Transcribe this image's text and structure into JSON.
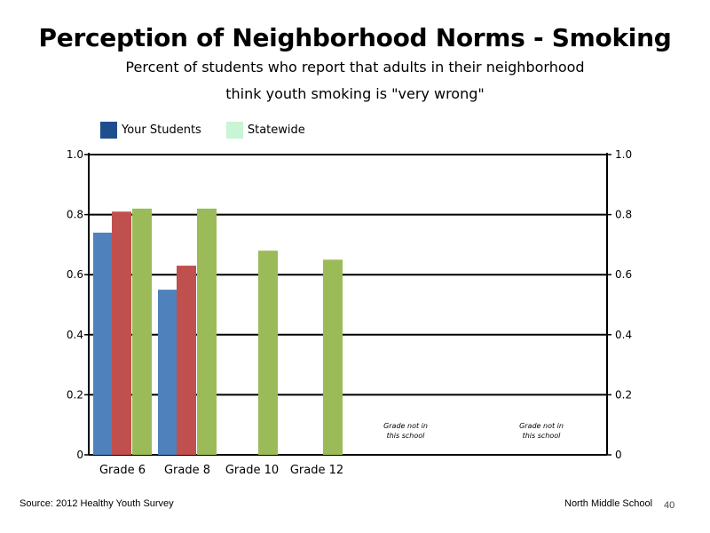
{
  "slide": {
    "title": "Perception of Neighborhood Norms - Smoking",
    "subtitle_line1": "Percent of students who report that adults in their neighborhood",
    "subtitle_line2": "think youth smoking is \"very wrong\"",
    "source": "Source: 2012 Healthy Youth Survey",
    "school": "North Middle School",
    "page_number": "40"
  },
  "legend": {
    "items": [
      {
        "label": "Your Students",
        "color": "#1f4e8c"
      },
      {
        "label": "Statewide",
        "color": "#c8f5d6"
      }
    ]
  },
  "chart_data": {
    "type": "bar",
    "title": "Perception of Neighborhood Norms - Smoking",
    "categories": [
      "Grade 6",
      "Grade 8",
      "Grade 10",
      "Grade 12",
      "",
      ""
    ],
    "notes": [
      "Grade not in this school",
      "Grade not in this school"
    ],
    "series": [
      {
        "values": [
          0.74,
          0.55,
          null,
          null,
          null,
          null
        ],
        "color": "#4f81bd"
      },
      {
        "values": [
          0.81,
          0.63,
          null,
          null,
          null,
          null
        ],
        "color": "#c0504d"
      },
      {
        "values": [
          0.82,
          0.82,
          0.68,
          0.65,
          null,
          null
        ],
        "color": "#9bbb59"
      }
    ],
    "ylim": [
      0,
      1.0
    ],
    "yticks_left": [
      "0",
      "0.2",
      "0.4",
      "0.6",
      "0.8",
      "1.0"
    ],
    "yticks_right": [
      "0",
      "0.2",
      "0.4",
      "0.6",
      "0.8",
      "1.0"
    ],
    "grid": true
  }
}
